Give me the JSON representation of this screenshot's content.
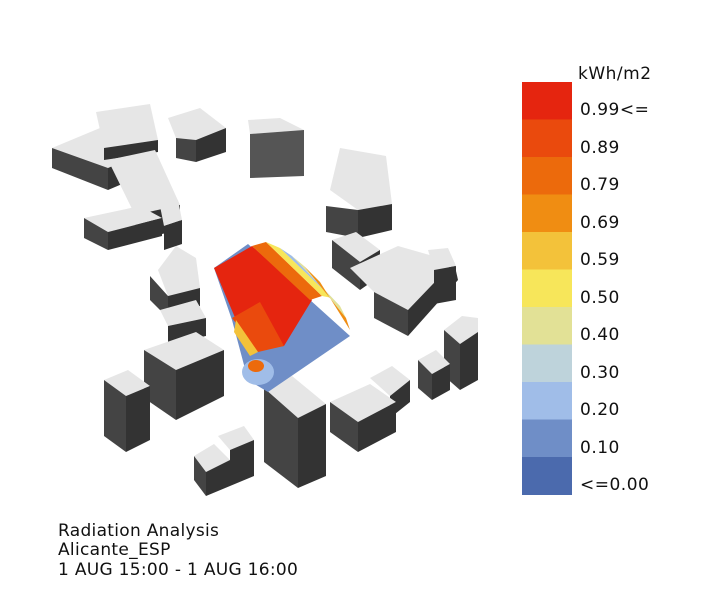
{
  "legend": {
    "unit": "kWh/m2",
    "labels": [
      "0.99<=",
      "0.89",
      "0.79",
      "0.69",
      "0.59",
      "0.50",
      "0.40",
      "0.30",
      "0.20",
      "0.10",
      "<=0.00"
    ],
    "colors": [
      "#e5250f",
      "#ea4a0d",
      "#ec6a0c",
      "#f08d12",
      "#f3c23a",
      "#f7e65a",
      "#e2e196",
      "#bed3db",
      "#a0bde8",
      "#6f8ec7",
      "#4b6aad"
    ]
  },
  "caption": {
    "line1": "Radiation Analysis",
    "line2": "Alicante_ESP",
    "line3": "1 AUG 15:00 - 1 AUG 16:00"
  }
}
